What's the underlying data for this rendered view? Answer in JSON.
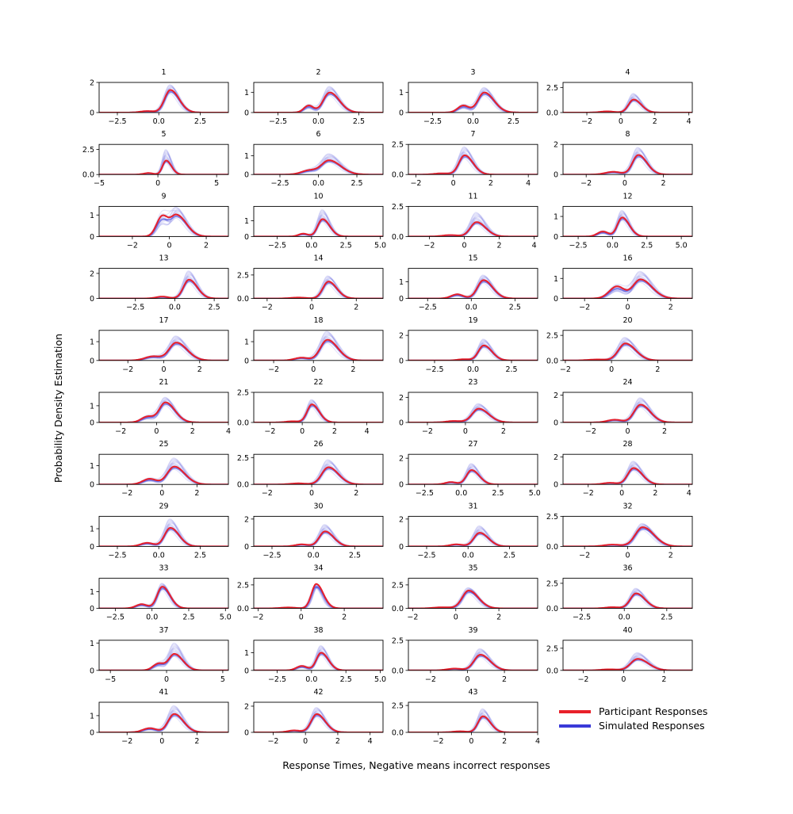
{
  "figure": {
    "ylabel": "Probability Density Estimation",
    "xlabel": "Response Times, Negative means incorrect responses",
    "legend": {
      "placement": "bottom-right",
      "entries": [
        {
          "label": "Participant Responses",
          "color": "#e8202a"
        },
        {
          "label": "Simulated Responses",
          "color": "#3a3ad8"
        }
      ]
    },
    "colors": {
      "participant": "#e8202a",
      "simulated": "#3a3ad8"
    }
  },
  "chart_data": [
    {
      "type": "line",
      "title": "1",
      "xlim": [
        -3.6,
        4.2
      ],
      "ylim": [
        0,
        2.0
      ],
      "xticks": [
        -2.5,
        0.0,
        2.5
      ],
      "yticks": [
        0,
        2
      ],
      "peak_correct": [
        0.7,
        1.5,
        0.35
      ],
      "peak_error": [
        -0.7,
        0.1,
        0.4
      ],
      "sim_peak": 1.85
    },
    {
      "type": "line",
      "title": "2",
      "xlim": [
        -4,
        4
      ],
      "ylim": [
        0,
        1.5
      ],
      "xticks": [
        -2.5,
        0.0,
        2.5
      ],
      "yticks": [
        0,
        1
      ],
      "peak_correct": [
        0.7,
        1.0,
        0.4
      ],
      "peak_error": [
        -0.6,
        0.35,
        0.3
      ],
      "sim_peak": 1.3
    },
    {
      "type": "line",
      "title": "3",
      "xlim": [
        -4,
        4
      ],
      "ylim": [
        0,
        1.5
      ],
      "xticks": [
        -2.5,
        0.0,
        2.5
      ],
      "yticks": [
        0,
        1
      ],
      "peak_correct": [
        0.7,
        1.0,
        0.4
      ],
      "peak_error": [
        -0.6,
        0.35,
        0.35
      ],
      "sim_peak": 1.25
    },
    {
      "type": "line",
      "title": "4",
      "xlim": [
        -3.4,
        4.2
      ],
      "ylim": [
        0,
        3.0
      ],
      "xticks": [
        -2,
        0,
        2,
        4
      ],
      "yticks": [
        0.0,
        2.5
      ],
      "peak_correct": [
        0.75,
        1.3,
        0.3
      ],
      "peak_error": [
        -0.8,
        0.12,
        0.4
      ],
      "sim_peak": 1.9
    },
    {
      "type": "line",
      "title": "5",
      "xlim": [
        -5,
        6
      ],
      "ylim": [
        0,
        3.0
      ],
      "xticks": [
        -5,
        0,
        5
      ],
      "yticks": [
        0.0,
        2.5
      ],
      "peak_correct": [
        0.7,
        1.4,
        0.3
      ],
      "peak_error": [
        -0.8,
        0.15,
        0.4
      ],
      "sim_peak": 2.5
    },
    {
      "type": "line",
      "title": "6",
      "xlim": [
        -4.2,
        4.2
      ],
      "ylim": [
        0,
        1.6
      ],
      "xticks": [
        -2.5,
        0.0,
        2.5
      ],
      "yticks": [
        0,
        1
      ],
      "peak_correct": [
        0.7,
        0.75,
        0.5
      ],
      "peak_error": [
        -0.6,
        0.22,
        0.5
      ],
      "sim_peak": 1.1
    },
    {
      "type": "line",
      "title": "7",
      "xlim": [
        -2.4,
        4.5
      ],
      "ylim": [
        0,
        2.5
      ],
      "xticks": [
        -2,
        0,
        2,
        4
      ],
      "yticks": [
        0.0,
        2.5
      ],
      "peak_correct": [
        0.6,
        1.6,
        0.3
      ],
      "peak_error": [
        -0.6,
        0.1,
        0.4
      ],
      "sim_peak": 2.3
    },
    {
      "type": "line",
      "title": "8",
      "xlim": [
        -3.2,
        3.5
      ],
      "ylim": [
        0,
        2.0
      ],
      "xticks": [
        -2,
        0,
        2
      ],
      "yticks": [
        0,
        2
      ],
      "peak_correct": [
        0.7,
        1.3,
        0.3
      ],
      "peak_error": [
        -0.6,
        0.18,
        0.4
      ],
      "sim_peak": 1.8
    },
    {
      "type": "line",
      "title": "9",
      "xlim": [
        -3.8,
        3.2
      ],
      "ylim": [
        0,
        1.4
      ],
      "xticks": [
        -2,
        0,
        2
      ],
      "yticks": [
        0,
        1
      ],
      "peak_correct": [
        0.4,
        1.0,
        0.35
      ],
      "peak_error": [
        -0.4,
        0.9,
        0.3
      ],
      "sim_peak": 1.35
    },
    {
      "type": "line",
      "title": "10",
      "xlim": [
        -4.2,
        5.2
      ],
      "ylim": [
        0,
        1.9
      ],
      "xticks": [
        -2.5,
        0.0,
        2.5,
        5.0
      ],
      "yticks": [
        0,
        1
      ],
      "peak_correct": [
        0.8,
        1.1,
        0.35
      ],
      "peak_error": [
        -0.6,
        0.18,
        0.35
      ],
      "sim_peak": 1.7
    },
    {
      "type": "line",
      "title": "11",
      "xlim": [
        -3.2,
        4.2
      ],
      "ylim": [
        0,
        2.5
      ],
      "xticks": [
        -2,
        0,
        2,
        4
      ],
      "yticks": [
        0.0,
        2.5
      ],
      "peak_correct": [
        0.7,
        1.2,
        0.35
      ],
      "peak_error": [
        -0.8,
        0.12,
        0.45
      ],
      "sim_peak": 2.0
    },
    {
      "type": "line",
      "title": "12",
      "xlim": [
        -3.6,
        5.8
      ],
      "ylim": [
        0,
        1.5
      ],
      "xticks": [
        -2.5,
        0.0,
        2.5,
        5.0
      ],
      "yticks": [
        0,
        1
      ],
      "peak_correct": [
        0.7,
        0.95,
        0.35
      ],
      "peak_error": [
        -0.7,
        0.25,
        0.4
      ],
      "sim_peak": 1.3
    },
    {
      "type": "line",
      "title": "13",
      "xlim": [
        -4.8,
        3.4
      ],
      "ylim": [
        0,
        2.4
      ],
      "xticks": [
        -2.5,
        0.0,
        2.5
      ],
      "yticks": [
        0,
        2
      ],
      "peak_correct": [
        0.9,
        1.5,
        0.35
      ],
      "peak_error": [
        -0.8,
        0.15,
        0.4
      ],
      "sim_peak": 2.2
    },
    {
      "type": "line",
      "title": "14",
      "xlim": [
        -2.6,
        3.2
      ],
      "ylim": [
        0,
        3.2
      ],
      "xticks": [
        -2,
        0,
        2
      ],
      "yticks": [
        0.0,
        2.5
      ],
      "peak_correct": [
        0.75,
        1.8,
        0.25
      ],
      "peak_error": [
        -0.6,
        0.1,
        0.35
      ],
      "sim_peak": 2.4
    },
    {
      "type": "line",
      "title": "15",
      "xlim": [
        -3.6,
        3.8
      ],
      "ylim": [
        0,
        1.8
      ],
      "xticks": [
        -2.5,
        0.0,
        2.5
      ],
      "yticks": [
        0,
        1
      ],
      "peak_correct": [
        0.7,
        1.1,
        0.35
      ],
      "peak_error": [
        -0.8,
        0.25,
        0.35
      ],
      "sim_peak": 1.4
    },
    {
      "type": "line",
      "title": "16",
      "xlim": [
        -3,
        3
      ],
      "ylim": [
        0,
        1.5
      ],
      "xticks": [
        -2,
        0,
        2
      ],
      "yticks": [
        0,
        1
      ],
      "peak_correct": [
        0.6,
        0.95,
        0.35
      ],
      "peak_error": [
        -0.5,
        0.6,
        0.35
      ],
      "sim_peak": 1.35
    },
    {
      "type": "line",
      "title": "17",
      "xlim": [
        -3.6,
        3.6
      ],
      "ylim": [
        0,
        1.6
      ],
      "xticks": [
        -2,
        0,
        2
      ],
      "yticks": [
        0,
        1
      ],
      "peak_correct": [
        0.7,
        0.95,
        0.4
      ],
      "peak_error": [
        -0.6,
        0.22,
        0.45
      ],
      "sim_peak": 1.3
    },
    {
      "type": "line",
      "title": "18",
      "xlim": [
        -3,
        3.5
      ],
      "ylim": [
        0,
        1.6
      ],
      "xticks": [
        -2,
        0,
        2
      ],
      "yticks": [
        0,
        1
      ],
      "peak_correct": [
        0.7,
        1.1,
        0.35
      ],
      "peak_error": [
        -0.6,
        0.15,
        0.35
      ],
      "sim_peak": 1.55
    },
    {
      "type": "line",
      "title": "19",
      "xlim": [
        -4.2,
        4.2
      ],
      "ylim": [
        0,
        2.4
      ],
      "xticks": [
        -2.5,
        0.0,
        2.5
      ],
      "yticks": [
        0,
        2
      ],
      "peak_correct": [
        0.7,
        1.2,
        0.35
      ],
      "peak_error": [
        -0.6,
        0.1,
        0.4
      ],
      "sim_peak": 1.7
    },
    {
      "type": "line",
      "title": "20",
      "xlim": [
        -2.1,
        3.5
      ],
      "ylim": [
        0,
        3.0
      ],
      "xticks": [
        -2,
        0,
        2
      ],
      "yticks": [
        0.0,
        2.5
      ],
      "peak_correct": [
        0.6,
        1.7,
        0.3
      ],
      "peak_error": [
        -0.6,
        0.1,
        0.4
      ],
      "sim_peak": 2.3
    },
    {
      "type": "line",
      "title": "21",
      "xlim": [
        -3.2,
        4
      ],
      "ylim": [
        0,
        1.8
      ],
      "xticks": [
        -2,
        0,
        2,
        4
      ],
      "yticks": [
        0,
        1
      ],
      "peak_correct": [
        0.5,
        1.2,
        0.35
      ],
      "peak_error": [
        -0.5,
        0.35,
        0.35
      ],
      "sim_peak": 1.5
    },
    {
      "type": "line",
      "title": "22",
      "xlim": [
        -3,
        5
      ],
      "ylim": [
        0,
        2.5
      ],
      "xticks": [
        -2,
        0,
        2,
        4
      ],
      "yticks": [
        0.0,
        2.5
      ],
      "peak_correct": [
        0.6,
        1.5,
        0.3
      ],
      "peak_error": [
        -0.6,
        0.1,
        0.4
      ],
      "sim_peak": 1.9
    },
    {
      "type": "line",
      "title": "23",
      "xlim": [
        -3,
        3.8
      ],
      "ylim": [
        0,
        2.4
      ],
      "xticks": [
        -2,
        0,
        2
      ],
      "yticks": [
        0,
        2
      ],
      "peak_correct": [
        0.7,
        1.1,
        0.35
      ],
      "peak_error": [
        -0.6,
        0.12,
        0.4
      ],
      "sim_peak": 1.5
    },
    {
      "type": "line",
      "title": "24",
      "xlim": [
        -3.5,
        3.5
      ],
      "ylim": [
        0,
        2.2
      ],
      "xticks": [
        -2,
        0,
        2
      ],
      "yticks": [
        0,
        2
      ],
      "peak_correct": [
        0.7,
        1.3,
        0.35
      ],
      "peak_error": [
        -0.7,
        0.2,
        0.4
      ],
      "sim_peak": 1.8
    },
    {
      "type": "line",
      "title": "25",
      "xlim": [
        -3.6,
        3.8
      ],
      "ylim": [
        0,
        1.6
      ],
      "xticks": [
        -2,
        0,
        2
      ],
      "yticks": [
        0,
        1
      ],
      "peak_correct": [
        0.7,
        0.95,
        0.4
      ],
      "peak_error": [
        -0.7,
        0.3,
        0.4
      ],
      "sim_peak": 1.4
    },
    {
      "type": "line",
      "title": "26",
      "xlim": [
        -2.6,
        3.2
      ],
      "ylim": [
        0,
        2.8
      ],
      "xticks": [
        -2,
        0,
        2
      ],
      "yticks": [
        0.0,
        2.5
      ],
      "peak_correct": [
        0.75,
        1.6,
        0.3
      ],
      "peak_error": [
        -0.6,
        0.1,
        0.35
      ],
      "sim_peak": 2.3
    },
    {
      "type": "line",
      "title": "27",
      "xlim": [
        -3.6,
        5.2
      ],
      "ylim": [
        0,
        2.3
      ],
      "xticks": [
        -2.5,
        0.0,
        2.5,
        5.0
      ],
      "yticks": [
        0,
        2
      ],
      "peak_correct": [
        0.7,
        1.1,
        0.35
      ],
      "peak_error": [
        -0.7,
        0.18,
        0.4
      ],
      "sim_peak": 1.6
    },
    {
      "type": "line",
      "title": "28",
      "xlim": [
        -3.5,
        4.2
      ],
      "ylim": [
        0,
        2.2
      ],
      "xticks": [
        -2,
        0,
        2,
        4
      ],
      "yticks": [
        0,
        2
      ],
      "peak_correct": [
        0.7,
        1.2,
        0.35
      ],
      "peak_error": [
        -0.7,
        0.12,
        0.4
      ],
      "sim_peak": 1.7
    },
    {
      "type": "line",
      "title": "29",
      "xlim": [
        -3.6,
        4.2
      ],
      "ylim": [
        0,
        1.7
      ],
      "xticks": [
        -2.5,
        0.0,
        2.5
      ],
      "yticks": [
        0,
        1
      ],
      "peak_correct": [
        0.7,
        1.05,
        0.35
      ],
      "peak_error": [
        -0.7,
        0.2,
        0.4
      ],
      "sim_peak": 1.55
    },
    {
      "type": "line",
      "title": "30",
      "xlim": [
        -3.6,
        4.2
      ],
      "ylim": [
        0,
        2.2
      ],
      "xticks": [
        -2.5,
        0.0,
        2.5
      ],
      "yticks": [
        0,
        2
      ],
      "peak_correct": [
        0.7,
        1.1,
        0.35
      ],
      "peak_error": [
        -0.7,
        0.15,
        0.4
      ],
      "sim_peak": 1.6
    },
    {
      "type": "line",
      "title": "31",
      "xlim": [
        -3.6,
        4.2
      ],
      "ylim": [
        0,
        2.2
      ],
      "xticks": [
        -2.5,
        0.0,
        2.5
      ],
      "yticks": [
        0,
        2
      ],
      "peak_correct": [
        0.7,
        1.0,
        0.35
      ],
      "peak_error": [
        -0.7,
        0.15,
        0.4
      ],
      "sim_peak": 1.5
    },
    {
      "type": "line",
      "title": "32",
      "xlim": [
        -3,
        3
      ],
      "ylim": [
        0,
        2.5
      ],
      "xticks": [
        -2,
        0,
        2
      ],
      "yticks": [
        0.0,
        2.5
      ],
      "peak_correct": [
        0.7,
        1.6,
        0.35
      ],
      "peak_error": [
        -0.7,
        0.15,
        0.4
      ],
      "sim_peak": 1.9
    },
    {
      "type": "line",
      "title": "33",
      "xlim": [
        -3.6,
        5.2
      ],
      "ylim": [
        0,
        1.8
      ],
      "xticks": [
        -2.5,
        0.0,
        2.5,
        5.0
      ],
      "yticks": [
        0,
        1
      ],
      "peak_correct": [
        0.7,
        1.3,
        0.35
      ],
      "peak_error": [
        -0.7,
        0.25,
        0.4
      ],
      "sim_peak": 1.5
    },
    {
      "type": "line",
      "title": "34",
      "xlim": [
        -2.2,
        3.8
      ],
      "ylim": [
        0,
        3.2
      ],
      "xticks": [
        -2,
        0,
        2
      ],
      "yticks": [
        0.0,
        2.5
      ],
      "peak_correct": [
        0.7,
        2.6,
        0.22
      ],
      "peak_error": [
        -0.6,
        0.1,
        0.35
      ],
      "sim_peak": 2.3
    },
    {
      "type": "line",
      "title": "35",
      "xlim": [
        -2.2,
        3.8
      ],
      "ylim": [
        0,
        3.2
      ],
      "xticks": [
        -2,
        0,
        2
      ],
      "yticks": [
        0.0,
        2.5
      ],
      "peak_correct": [
        0.6,
        1.9,
        0.3
      ],
      "peak_error": [
        -0.6,
        0.12,
        0.4
      ],
      "sim_peak": 2.2
    },
    {
      "type": "line",
      "title": "36",
      "xlim": [
        -3.6,
        4
      ],
      "ylim": [
        0,
        3.0
      ],
      "xticks": [
        -2.5,
        0.0,
        2.5
      ],
      "yticks": [
        0.0,
        2.5
      ],
      "peak_correct": [
        0.7,
        1.5,
        0.35
      ],
      "peak_error": [
        -0.7,
        0.12,
        0.4
      ],
      "sim_peak": 2.0
    },
    {
      "type": "line",
      "title": "37",
      "xlim": [
        -6,
        5.5
      ],
      "ylim": [
        0,
        1.1
      ],
      "xticks": [
        -5,
        0,
        5
      ],
      "yticks": [
        0,
        1
      ],
      "peak_correct": [
        0.7,
        0.6,
        0.5
      ],
      "peak_error": [
        -0.7,
        0.25,
        0.5
      ],
      "sim_peak": 1.0
    },
    {
      "type": "line",
      "title": "38",
      "xlim": [
        -4.2,
        5.2
      ],
      "ylim": [
        0,
        1.7
      ],
      "xticks": [
        -2.5,
        0.0,
        2.5,
        5.0
      ],
      "yticks": [
        0,
        1
      ],
      "peak_correct": [
        0.7,
        1.0,
        0.35
      ],
      "peak_error": [
        -0.7,
        0.25,
        0.4
      ],
      "sim_peak": 1.4
    },
    {
      "type": "line",
      "title": "39",
      "xlim": [
        -3.2,
        3.8
      ],
      "ylim": [
        0,
        2.5
      ],
      "xticks": [
        -2,
        0,
        2
      ],
      "yticks": [
        0.0,
        2.5
      ],
      "peak_correct": [
        0.7,
        1.3,
        0.35
      ],
      "peak_error": [
        -0.7,
        0.15,
        0.4
      ],
      "sim_peak": 1.8
    },
    {
      "type": "line",
      "title": "40",
      "xlim": [
        -3,
        3.4
      ],
      "ylim": [
        0,
        3.4
      ],
      "xticks": [
        -2,
        0,
        2
      ],
      "yticks": [
        0.0,
        2.5
      ],
      "peak_correct": [
        0.7,
        1.3,
        0.35
      ],
      "peak_error": [
        -0.7,
        0.12,
        0.4
      ],
      "sim_peak": 2.0
    },
    {
      "type": "line",
      "title": "41",
      "xlim": [
        -3.6,
        3.8
      ],
      "ylim": [
        0,
        1.8
      ],
      "xticks": [
        -2,
        0,
        2
      ],
      "yticks": [
        0,
        1
      ],
      "peak_correct": [
        0.7,
        1.1,
        0.35
      ],
      "peak_error": [
        -0.7,
        0.25,
        0.4
      ],
      "sim_peak": 1.6
    },
    {
      "type": "line",
      "title": "42",
      "xlim": [
        -3.2,
        4.8
      ],
      "ylim": [
        0,
        2.3
      ],
      "xticks": [
        -2,
        0,
        2,
        4
      ],
      "yticks": [
        0,
        2
      ],
      "peak_correct": [
        0.7,
        1.4,
        0.35
      ],
      "peak_error": [
        -0.7,
        0.15,
        0.4
      ],
      "sim_peak": 1.9
    },
    {
      "type": "line",
      "title": "43",
      "xlim": [
        -3.8,
        4
      ],
      "ylim": [
        0,
        2.8
      ],
      "xticks": [
        -2,
        0,
        2,
        4
      ],
      "yticks": [
        0.0,
        2.5
      ],
      "peak_correct": [
        0.7,
        1.5,
        0.3
      ],
      "peak_error": [
        -0.7,
        0.1,
        0.4
      ],
      "sim_peak": 2.2
    }
  ]
}
